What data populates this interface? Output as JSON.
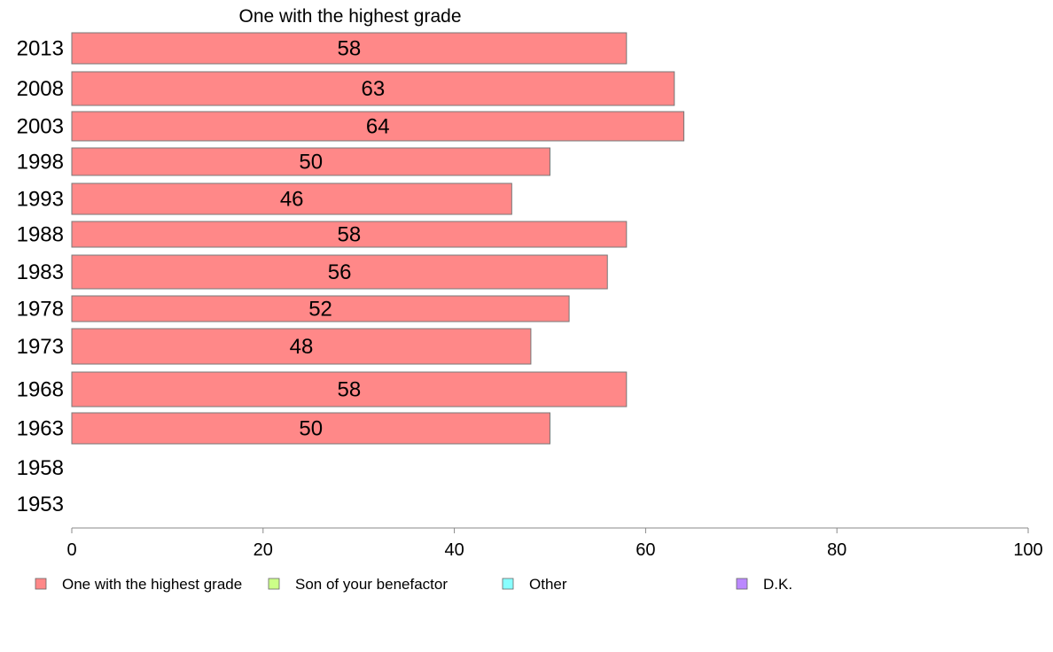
{
  "chart_data": {
    "type": "bar",
    "orientation": "horizontal",
    "title": "One with the highest grade",
    "categories": [
      "2013",
      "2008",
      "2003",
      "1998",
      "1993",
      "1988",
      "1983",
      "1978",
      "1973",
      "1968",
      "1963",
      "1958",
      "1953"
    ],
    "series": [
      {
        "name": "One with the highest grade",
        "color": "#ff8888",
        "values": [
          58,
          63,
          64,
          50,
          46,
          58,
          56,
          52,
          48,
          58,
          50,
          null,
          null
        ],
        "labels": [
          "58",
          "63",
          "64",
          "50",
          "46",
          "58",
          "56",
          "52",
          "48",
          "58",
          "50",
          "",
          ""
        ]
      }
    ],
    "xlim": [
      0,
      100
    ],
    "xticks": [
      0,
      20,
      40,
      60,
      80,
      100
    ],
    "xtick_labels": [
      "0",
      "20",
      "40",
      "60",
      "80",
      "100"
    ],
    "grid": false,
    "legend_position": "bottom",
    "legend": [
      {
        "label": "One with the highest grade",
        "color": "#ff8888"
      },
      {
        "label": "Son of your benefactor",
        "color": "#ccff88"
      },
      {
        "label": "Other",
        "color": "#88ffff"
      },
      {
        "label": "D.K.",
        "color": "#bb88ff"
      }
    ]
  }
}
